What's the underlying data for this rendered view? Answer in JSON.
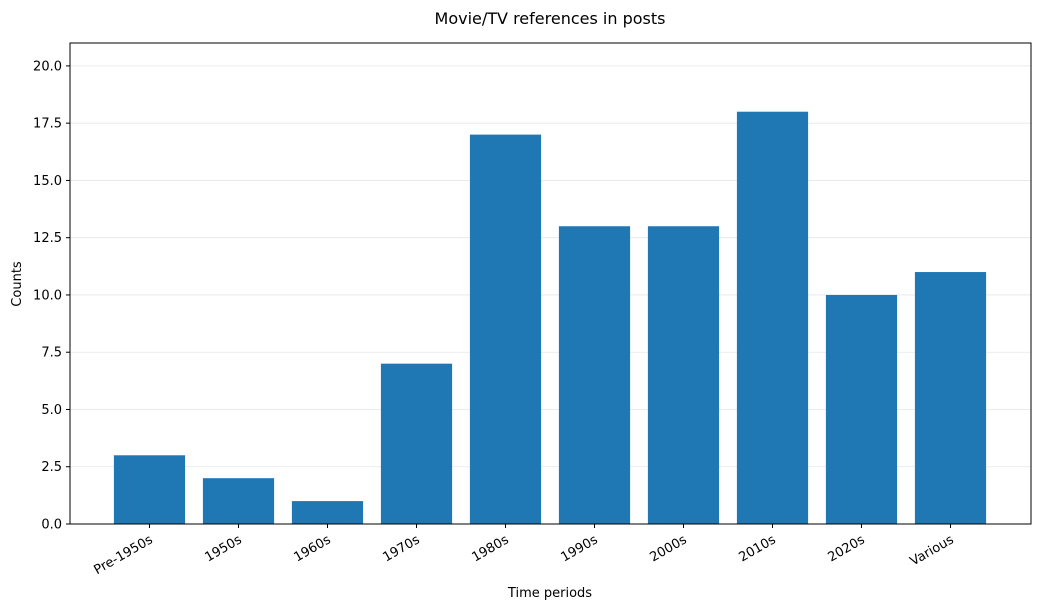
{
  "chart_data": {
    "type": "bar",
    "title": "Movie/TV references in posts",
    "xlabel": "Time periods",
    "ylabel": "Counts",
    "categories": [
      "Pre-1950s",
      "1950s",
      "1960s",
      "1970s",
      "1980s",
      "1990s",
      "2000s",
      "2010s",
      "2020s",
      "Various"
    ],
    "values": [
      3,
      2,
      1,
      7,
      17,
      13,
      13,
      18,
      10,
      11
    ],
    "ylim": [
      0,
      21
    ],
    "yticks": [
      0.0,
      2.5,
      5.0,
      7.5,
      10.0,
      12.5,
      15.0,
      17.5,
      20.0
    ],
    "ytick_labels": [
      "0.0",
      "2.5",
      "5.0",
      "7.5",
      "10.0",
      "12.5",
      "15.0",
      "17.5",
      "20.0"
    ],
    "bar_color": "#1f77b4",
    "grid": "horizontal",
    "legend": "none"
  }
}
